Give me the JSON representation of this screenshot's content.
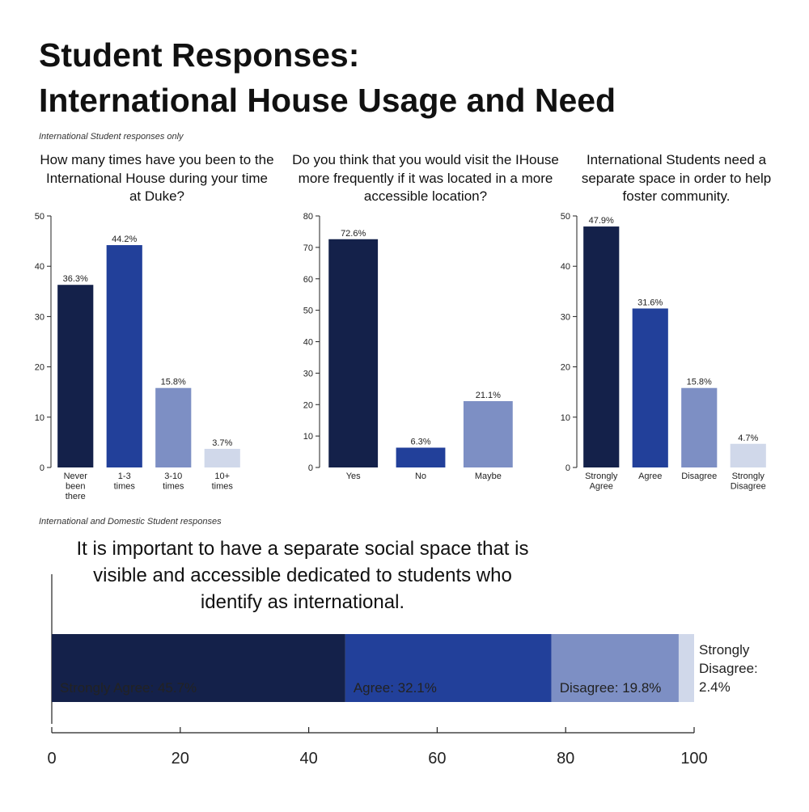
{
  "header": {
    "title_lines": [
      "Student Responses:",
      "International House Usage and Need"
    ],
    "note_top": "International Student responses only",
    "note_bottom": "International and Domestic Student responses"
  },
  "chart_data": [
    {
      "type": "bar",
      "title": "How many times have you been to the International House during your time at Duke?",
      "categories": [
        "Never been there",
        "1-3 times",
        "3-10 times",
        "10+ times"
      ],
      "values": [
        36.3,
        44.2,
        15.8,
        3.7
      ],
      "value_labels": [
        "36.3%",
        "44.2%",
        "15.8%",
        "3.7%"
      ],
      "colors": [
        "#14214a",
        "#22409a",
        "#7d8fc4",
        "#d0d8ea"
      ],
      "ylim": [
        0,
        50
      ],
      "yticks": [
        0,
        10,
        20,
        30,
        40,
        50
      ]
    },
    {
      "type": "bar",
      "title": "Do you think that you would visit the IHouse more frequently if it was located in a more accessible location?",
      "categories": [
        "Yes",
        "No",
        "Maybe"
      ],
      "values": [
        72.6,
        6.3,
        21.1
      ],
      "value_labels": [
        "72.6%",
        "6.3%",
        "21.1%"
      ],
      "colors": [
        "#14214a",
        "#22409a",
        "#7d8fc4"
      ],
      "ylim": [
        0,
        80
      ],
      "yticks": [
        0,
        10,
        20,
        30,
        40,
        50,
        60,
        70,
        80
      ]
    },
    {
      "type": "bar",
      "title": "International Students need a separate space in order to help foster community.",
      "categories": [
        "Strongly Agree",
        "Agree",
        "Disagree",
        "Strongly Disagree"
      ],
      "values": [
        47.9,
        31.6,
        15.8,
        4.7
      ],
      "value_labels": [
        "47.9%",
        "31.6%",
        "15.8%",
        "4.7%"
      ],
      "colors": [
        "#14214a",
        "#22409a",
        "#7d8fc4",
        "#d0d8ea"
      ],
      "ylim": [
        0,
        50
      ],
      "yticks": [
        0,
        10,
        20,
        30,
        40,
        50
      ]
    },
    {
      "type": "stacked_hbar",
      "title": "It is important to have a separate social space that is visible and accessible dedicated to students who identify as international.",
      "values": [
        45.7,
        32.1,
        19.8,
        2.4
      ],
      "value_labels": [
        "Strongly Agree: 45.7%",
        "Agree: 32.1%",
        "Disagree: 19.8%",
        "Strongly Disagree: 2.4%"
      ],
      "colors": [
        "#14214a",
        "#22409a",
        "#7d8fc4",
        "#d0d8ea"
      ],
      "xlim": [
        0,
        100
      ],
      "xticks": [
        0,
        20,
        40,
        60,
        80,
        100
      ]
    }
  ]
}
